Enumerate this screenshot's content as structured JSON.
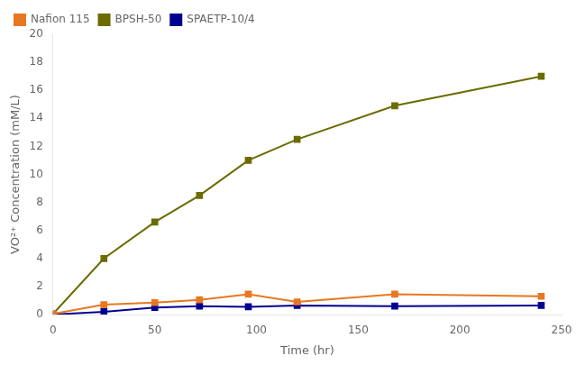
{
  "chart_data": {
    "type": "line",
    "x": [
      0,
      25,
      50,
      72,
      96,
      120,
      168,
      240
    ],
    "series": [
      {
        "name": "Nafion 115",
        "color": "#E87722",
        "values": [
          0.05,
          0.7,
          0.85,
          1.05,
          1.45,
          0.9,
          1.45,
          1.3
        ]
      },
      {
        "name": "BPSH-50",
        "color": "#6B6B00",
        "values": [
          0.05,
          4.0,
          6.6,
          8.5,
          11.0,
          12.5,
          14.9,
          17.0
        ]
      },
      {
        "name": "SPAETP-10/4",
        "color": "#000090",
        "values": [
          0.0,
          0.2,
          0.5,
          0.6,
          0.55,
          0.65,
          0.6,
          0.65
        ]
      }
    ],
    "xlabel": "Time (hr)",
    "ylabel": "VO²⁺ Concentration (mM/L)",
    "xlim": [
      0,
      250
    ],
    "xticks": [
      0,
      50,
      100,
      150,
      200,
      250
    ],
    "ylim": [
      0,
      20
    ],
    "yticks": [
      0,
      2,
      4,
      6,
      8,
      10,
      12,
      14,
      16,
      18,
      20
    ],
    "grid": false,
    "legend": "upper left",
    "marker": "square"
  }
}
